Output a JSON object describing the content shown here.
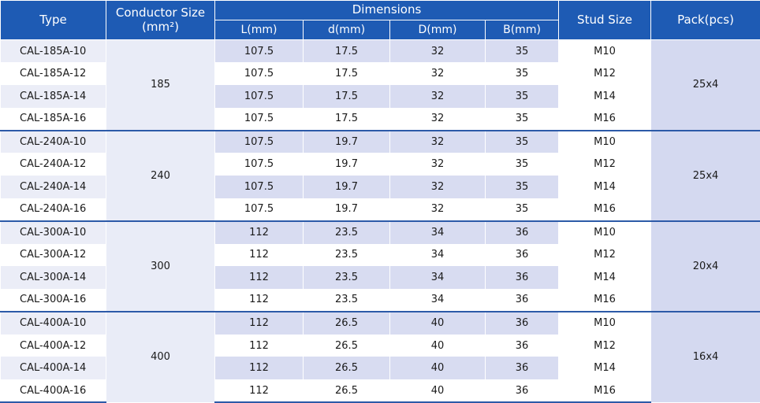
{
  "headers": {
    "type": "Type",
    "conductor": "Conductor Size",
    "conductor_unit": "(mm²)",
    "dimensions": "Dimensions",
    "L": "L(mm)",
    "d": "d(mm)",
    "D": "D(mm)",
    "B": "B(mm)",
    "stud": "Stud Size",
    "pack": "Pack(pcs)"
  },
  "groups": [
    {
      "conductor": "185",
      "pack": "25x4",
      "rows": [
        {
          "type": "CAL-185A-10",
          "L": "107.5",
          "d": "17.5",
          "D": "32",
          "B": "35",
          "stud": "M10"
        },
        {
          "type": "CAL-185A-12",
          "L": "107.5",
          "d": "17.5",
          "D": "32",
          "B": "35",
          "stud": "M12"
        },
        {
          "type": "CAL-185A-14",
          "L": "107.5",
          "d": "17.5",
          "D": "32",
          "B": "35",
          "stud": "M14"
        },
        {
          "type": "CAL-185A-16",
          "L": "107.5",
          "d": "17.5",
          "D": "32",
          "B": "35",
          "stud": "M16"
        }
      ]
    },
    {
      "conductor": "240",
      "pack": "25x4",
      "rows": [
        {
          "type": "CAL-240A-10",
          "L": "107.5",
          "d": "19.7",
          "D": "32",
          "B": "35",
          "stud": "M10"
        },
        {
          "type": "CAL-240A-12",
          "L": "107.5",
          "d": "19.7",
          "D": "32",
          "B": "35",
          "stud": "M12"
        },
        {
          "type": "CAL-240A-14",
          "L": "107.5",
          "d": "19.7",
          "D": "32",
          "B": "35",
          "stud": "M14"
        },
        {
          "type": "CAL-240A-16",
          "L": "107.5",
          "d": "19.7",
          "D": "32",
          "B": "35",
          "stud": "M16"
        }
      ]
    },
    {
      "conductor": "300",
      "pack": "20x4",
      "rows": [
        {
          "type": "CAL-300A-10",
          "L": "112",
          "d": "23.5",
          "D": "34",
          "B": "36",
          "stud": "M10"
        },
        {
          "type": "CAL-300A-12",
          "L": "112",
          "d": "23.5",
          "D": "34",
          "B": "36",
          "stud": "M12"
        },
        {
          "type": "CAL-300A-14",
          "L": "112",
          "d": "23.5",
          "D": "34",
          "B": "36",
          "stud": "M14"
        },
        {
          "type": "CAL-300A-16",
          "L": "112",
          "d": "23.5",
          "D": "34",
          "B": "36",
          "stud": "M16"
        }
      ]
    },
    {
      "conductor": "400",
      "pack": "16x4",
      "rows": [
        {
          "type": "CAL-400A-10",
          "L": "112",
          "d": "26.5",
          "D": "40",
          "B": "36",
          "stud": "M10"
        },
        {
          "type": "CAL-400A-12",
          "L": "112",
          "d": "26.5",
          "D": "40",
          "B": "36",
          "stud": "M12"
        },
        {
          "type": "CAL-400A-14",
          "L": "112",
          "d": "26.5",
          "D": "40",
          "B": "36",
          "stud": "M14"
        },
        {
          "type": "CAL-400A-16",
          "L": "112",
          "d": "26.5",
          "D": "40",
          "B": "36",
          "stud": "M16"
        }
      ]
    }
  ]
}
